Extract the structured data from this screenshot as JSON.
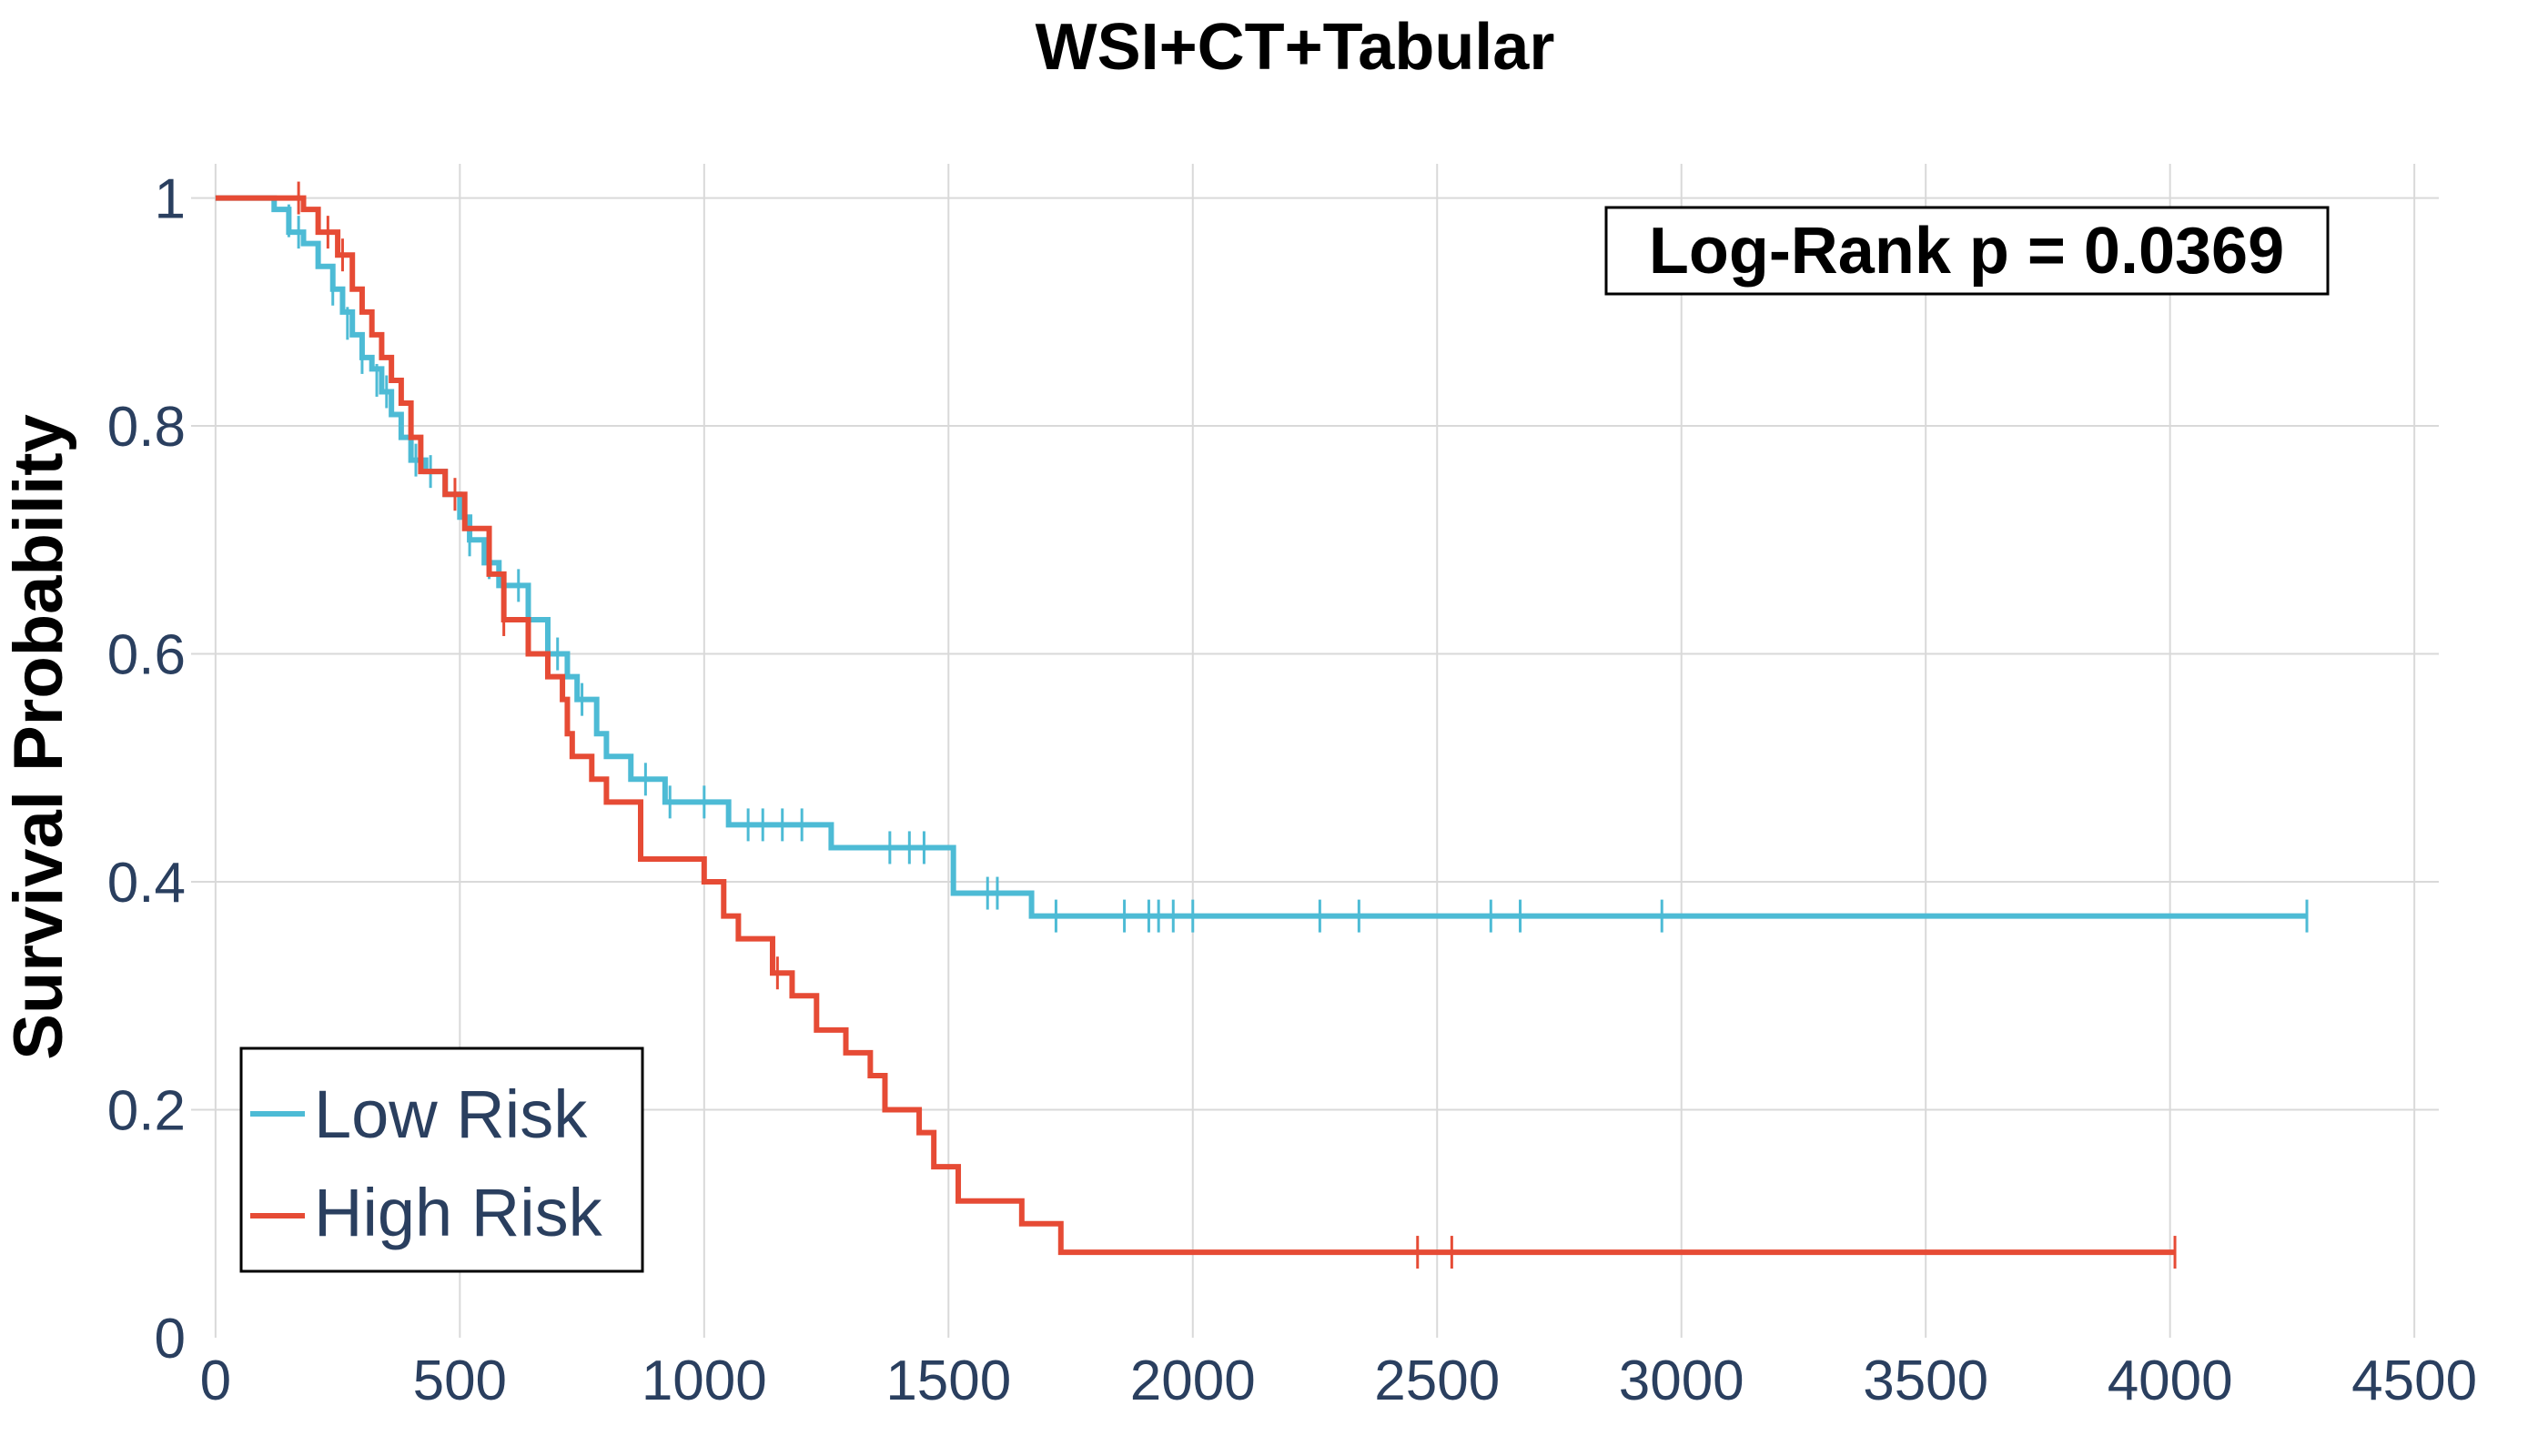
{
  "chart_data": {
    "type": "line",
    "title": "WSI+CT+Tabular",
    "xlabel": "",
    "ylabel": "Survival Probability",
    "xlim": [
      -50,
      4550
    ],
    "ylim": [
      0,
      1.03
    ],
    "x_ticks": [
      0,
      500,
      1000,
      1500,
      2000,
      2500,
      3000,
      3500,
      4000,
      4500
    ],
    "y_ticks": [
      0,
      0.2,
      0.4,
      0.6,
      0.8,
      1
    ],
    "y_tick_labels": [
      "0",
      "0.2",
      "0.4",
      "0.6",
      "0.8",
      "1"
    ],
    "grid": true,
    "legend_position": "bottom-left",
    "annotation": "Log-Rank p = 0.0369",
    "series": [
      {
        "name": "Low Risk",
        "color": "#4dbbd5",
        "steps": [
          [
            0,
            1.0
          ],
          [
            120,
            0.99
          ],
          [
            150,
            0.97
          ],
          [
            180,
            0.96
          ],
          [
            210,
            0.94
          ],
          [
            240,
            0.92
          ],
          [
            260,
            0.9
          ],
          [
            280,
            0.88
          ],
          [
            300,
            0.86
          ],
          [
            320,
            0.85
          ],
          [
            340,
            0.83
          ],
          [
            360,
            0.81
          ],
          [
            380,
            0.79
          ],
          [
            400,
            0.77
          ],
          [
            430,
            0.76
          ],
          [
            470,
            0.74
          ],
          [
            500,
            0.72
          ],
          [
            520,
            0.7
          ],
          [
            550,
            0.68
          ],
          [
            580,
            0.66
          ],
          [
            640,
            0.63
          ],
          [
            680,
            0.6
          ],
          [
            720,
            0.58
          ],
          [
            740,
            0.56
          ],
          [
            780,
            0.53
          ],
          [
            800,
            0.51
          ],
          [
            850,
            0.49
          ],
          [
            920,
            0.47
          ],
          [
            1050,
            0.45
          ],
          [
            1260,
            0.43
          ],
          [
            1510,
            0.39
          ],
          [
            1670,
            0.37
          ],
          [
            4280,
            0.37
          ]
        ],
        "censored": [
          [
            150,
            0.98
          ],
          [
            170,
            0.97
          ],
          [
            240,
            0.92
          ],
          [
            270,
            0.89
          ],
          [
            300,
            0.86
          ],
          [
            330,
            0.84
          ],
          [
            350,
            0.83
          ],
          [
            410,
            0.77
          ],
          [
            440,
            0.76
          ],
          [
            520,
            0.7
          ],
          [
            560,
            0.68
          ],
          [
            620,
            0.66
          ],
          [
            700,
            0.6
          ],
          [
            750,
            0.56
          ],
          [
            880,
            0.49
          ],
          [
            930,
            0.47
          ],
          [
            1000,
            0.47
          ],
          [
            1090,
            0.45
          ],
          [
            1120,
            0.45
          ],
          [
            1160,
            0.45
          ],
          [
            1200,
            0.45
          ],
          [
            1380,
            0.43
          ],
          [
            1420,
            0.43
          ],
          [
            1450,
            0.43
          ],
          [
            1580,
            0.39
          ],
          [
            1600,
            0.39
          ],
          [
            1720,
            0.37
          ],
          [
            1860,
            0.37
          ],
          [
            1910,
            0.37
          ],
          [
            1930,
            0.37
          ],
          [
            1960,
            0.37
          ],
          [
            2000,
            0.37
          ],
          [
            2260,
            0.37
          ],
          [
            2340,
            0.37
          ],
          [
            2610,
            0.37
          ],
          [
            2670,
            0.37
          ],
          [
            2960,
            0.37
          ],
          [
            4280,
            0.37
          ]
        ]
      },
      {
        "name": "High Risk",
        "color": "#e64b35",
        "steps": [
          [
            0,
            1.0
          ],
          [
            180,
            0.99
          ],
          [
            210,
            0.97
          ],
          [
            250,
            0.95
          ],
          [
            280,
            0.92
          ],
          [
            300,
            0.9
          ],
          [
            320,
            0.88
          ],
          [
            340,
            0.86
          ],
          [
            360,
            0.84
          ],
          [
            380,
            0.82
          ],
          [
            400,
            0.79
          ],
          [
            420,
            0.76
          ],
          [
            470,
            0.74
          ],
          [
            510,
            0.71
          ],
          [
            560,
            0.67
          ],
          [
            590,
            0.63
          ],
          [
            640,
            0.6
          ],
          [
            680,
            0.58
          ],
          [
            710,
            0.56
          ],
          [
            720,
            0.53
          ],
          [
            730,
            0.51
          ],
          [
            770,
            0.49
          ],
          [
            800,
            0.47
          ],
          [
            870,
            0.42
          ],
          [
            1000,
            0.4
          ],
          [
            1040,
            0.37
          ],
          [
            1070,
            0.35
          ],
          [
            1140,
            0.32
          ],
          [
            1180,
            0.3
          ],
          [
            1230,
            0.27
          ],
          [
            1290,
            0.25
          ],
          [
            1340,
            0.23
          ],
          [
            1370,
            0.2
          ],
          [
            1440,
            0.18
          ],
          [
            1470,
            0.15
          ],
          [
            1520,
            0.12
          ],
          [
            1650,
            0.1
          ],
          [
            1730,
            0.075
          ],
          [
            4010,
            0.075
          ]
        ],
        "censored": [
          [
            170,
            1.0
          ],
          [
            230,
            0.97
          ],
          [
            260,
            0.95
          ],
          [
            490,
            0.74
          ],
          [
            590,
            0.63
          ],
          [
            1150,
            0.32
          ],
          [
            2460,
            0.075
          ],
          [
            2530,
            0.075
          ],
          [
            4010,
            0.075
          ]
        ]
      }
    ]
  }
}
